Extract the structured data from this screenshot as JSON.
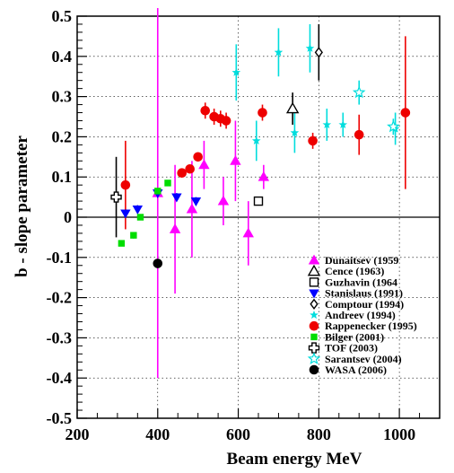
{
  "chart_data": {
    "type": "scatter",
    "xlabel": "Beam energy MeV",
    "ylabel": "b - slope parameter",
    "xlim": [
      200,
      1100
    ],
    "ylim": [
      -0.5,
      0.5
    ],
    "xticks": [
      "200",
      "400",
      "600",
      "800",
      "1000"
    ],
    "yticks": [
      "-0.5",
      "-0.4",
      "-0.3",
      "-0.2",
      "-0.1",
      "0",
      "0.1",
      "0.2",
      "0.3",
      "0.4",
      "0.5"
    ],
    "grid": true,
    "legend_position": "bottom-right",
    "series": [
      {
        "name": "Dunaitsev (1959",
        "color": "#ff00ff",
        "marker": "triangle-up",
        "filled": true,
        "points": [
          {
            "x": 400,
            "y": 0.06,
            "err": 0.46
          },
          {
            "x": 443,
            "y": -0.03,
            "err": 0.16
          },
          {
            "x": 485,
            "y": 0.02,
            "err": 0.12
          },
          {
            "x": 515,
            "y": 0.13,
            "err": 0.06
          },
          {
            "x": 563,
            "y": 0.04,
            "err": 0.06
          },
          {
            "x": 593,
            "y": 0.14,
            "err": 0.1
          },
          {
            "x": 625,
            "y": -0.04,
            "err": 0.08
          },
          {
            "x": 663,
            "y": 0.1,
            "err": 0.03
          }
        ]
      },
      {
        "name": "Cence (1963)",
        "color": "#000000",
        "marker": "triangle-up",
        "filled": false,
        "points": [
          {
            "x": 735,
            "y": 0.27,
            "err": 0.04
          }
        ]
      },
      {
        "name": "Guzhavin (1964",
        "color": "#000000",
        "marker": "square",
        "filled": false,
        "points": [
          {
            "x": 650,
            "y": 0.04,
            "err": 0.01
          }
        ]
      },
      {
        "name": "Stanislaus (1991)",
        "color": "#0000ff",
        "marker": "triangle-down",
        "filled": true,
        "points": [
          {
            "x": 320,
            "y": 0.01,
            "err": 0.01
          },
          {
            "x": 350,
            "y": 0.02,
            "err": 0.01
          },
          {
            "x": 400,
            "y": 0.06,
            "err": 0.01
          },
          {
            "x": 447,
            "y": 0.05,
            "err": 0.01
          },
          {
            "x": 495,
            "y": 0.04,
            "err": 0.01
          }
        ]
      },
      {
        "name": "Comptour (1994)",
        "color": "#000000",
        "marker": "diamond",
        "filled": false,
        "points": [
          {
            "x": 800,
            "y": 0.41,
            "err": 0.07
          }
        ]
      },
      {
        "name": "Andreev (1994)",
        "color": "#00dddd",
        "marker": "star",
        "filled": true,
        "points": [
          {
            "x": 595,
            "y": 0.36,
            "err": 0.07
          },
          {
            "x": 645,
            "y": 0.19,
            "err": 0.05
          },
          {
            "x": 700,
            "y": 0.41,
            "err": 0.06
          },
          {
            "x": 740,
            "y": 0.21,
            "err": 0.05
          },
          {
            "x": 778,
            "y": 0.42,
            "err": 0.06
          },
          {
            "x": 820,
            "y": 0.23,
            "err": 0.04
          },
          {
            "x": 860,
            "y": 0.23,
            "err": 0.03
          },
          {
            "x": 990,
            "y": 0.22,
            "err": 0.04
          }
        ]
      },
      {
        "name": "Rappenecker (1995)",
        "color": "#ee0000",
        "marker": "circle",
        "filled": true,
        "points": [
          {
            "x": 320,
            "y": 0.08,
            "err": 0.11
          },
          {
            "x": 460,
            "y": 0.11,
            "err": 0.01
          },
          {
            "x": 480,
            "y": 0.12,
            "err": 0.01
          },
          {
            "x": 500,
            "y": 0.15,
            "err": 0.01
          },
          {
            "x": 518,
            "y": 0.265,
            "err": 0.02
          },
          {
            "x": 540,
            "y": 0.25,
            "err": 0.02
          },
          {
            "x": 556,
            "y": 0.245,
            "err": 0.02
          },
          {
            "x": 570,
            "y": 0.24,
            "err": 0.02
          },
          {
            "x": 660,
            "y": 0.26,
            "err": 0.02
          },
          {
            "x": 785,
            "y": 0.19,
            "err": 0.02
          },
          {
            "x": 900,
            "y": 0.205,
            "err": 0.05
          },
          {
            "x": 1015,
            "y": 0.26,
            "err": 0.19
          }
        ]
      },
      {
        "name": "Bilger (2001)",
        "color": "#00dd00",
        "marker": "square",
        "filled": true,
        "points": [
          {
            "x": 310,
            "y": -0.065,
            "err": 0.005
          },
          {
            "x": 340,
            "y": -0.045,
            "err": 0.008
          },
          {
            "x": 357,
            "y": 0.0,
            "err": 0.005
          },
          {
            "x": 400,
            "y": 0.065,
            "err": 0.005
          },
          {
            "x": 425,
            "y": 0.085,
            "err": 0.005
          }
        ]
      },
      {
        "name": "TOF (2003)",
        "color": "#000000",
        "marker": "cross-open",
        "filled": false,
        "points": [
          {
            "x": 297,
            "y": 0.05,
            "err": 0.1
          }
        ]
      },
      {
        "name": "Sarantsev (2004)",
        "color": "#00dddd",
        "marker": "star",
        "filled": false,
        "points": [
          {
            "x": 900,
            "y": 0.31,
            "err": 0.03
          },
          {
            "x": 985,
            "y": 0.225,
            "err": 0.02
          }
        ]
      },
      {
        "name": "WASA (2006)",
        "color": "#000000",
        "marker": "circle",
        "filled": true,
        "points": [
          {
            "x": 400,
            "y": -0.115,
            "err": 0.0
          }
        ]
      }
    ]
  }
}
